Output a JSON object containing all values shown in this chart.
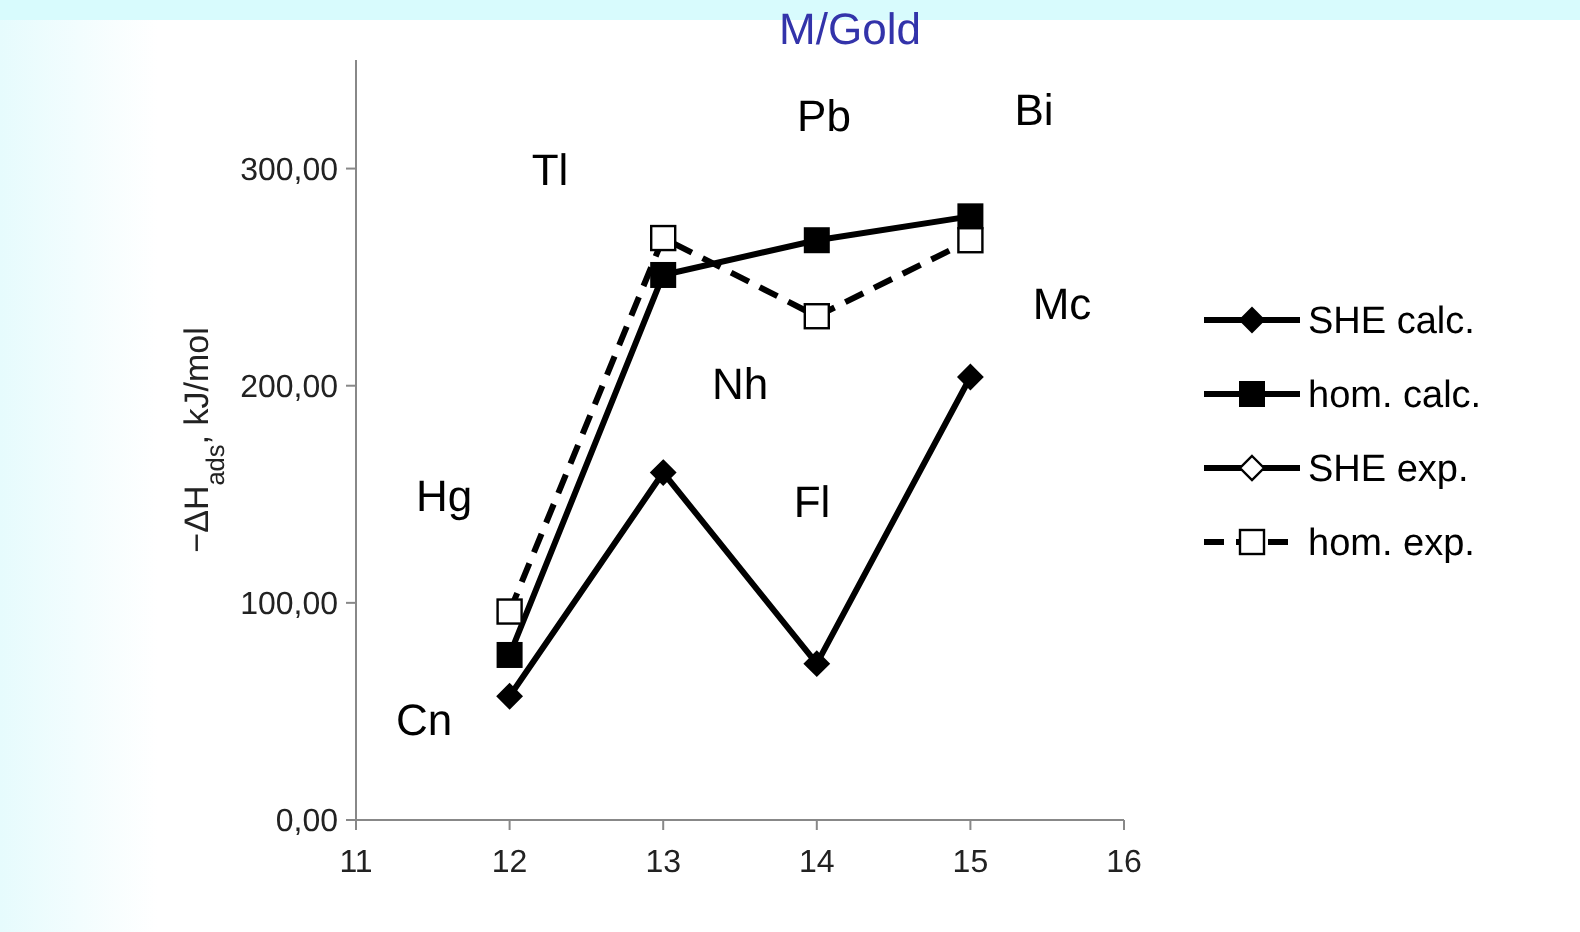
{
  "chart_data": {
    "type": "line",
    "title": "M/Gold",
    "ylabel": "−ΔH$_{ads}$, kJ/mol",
    "xlim": [
      11,
      16
    ],
    "xticks": [
      11,
      12,
      13,
      14,
      15,
      16
    ],
    "ylim": [
      0,
      350
    ],
    "yticks": [
      {
        "value": 0,
        "label": "0,00"
      },
      {
        "value": 100,
        "label": "100,00"
      },
      {
        "value": 200,
        "label": "200,00"
      },
      {
        "value": 300,
        "label": "300,00"
      }
    ],
    "x": [
      12,
      13,
      14,
      15
    ],
    "series": [
      {
        "name": "SHE calc.",
        "color": "#000000",
        "marker": "diamond",
        "line_style": "solid",
        "values": [
          57,
          160,
          72,
          204
        ]
      },
      {
        "name": "hom. calc.",
        "color": "#000000",
        "marker": "square",
        "line_style": "solid",
        "values": [
          76,
          251,
          267,
          278
        ]
      },
      {
        "name": "SHE exp.",
        "color": "#000000",
        "marker": "diamond-open",
        "line_style": "solid",
        "values": [
          null,
          null,
          null,
          null
        ]
      },
      {
        "name": "hom. exp.",
        "color": "#000000",
        "marker": "square-open",
        "line_style": "dashed",
        "values": [
          96,
          268,
          232,
          267
        ]
      }
    ],
    "annotations": [
      "Cn",
      "Hg",
      "Tl",
      "Nh",
      "Pb",
      "Fl",
      "Bi",
      "Mc"
    ],
    "legend": "right",
    "grid": false
  }
}
